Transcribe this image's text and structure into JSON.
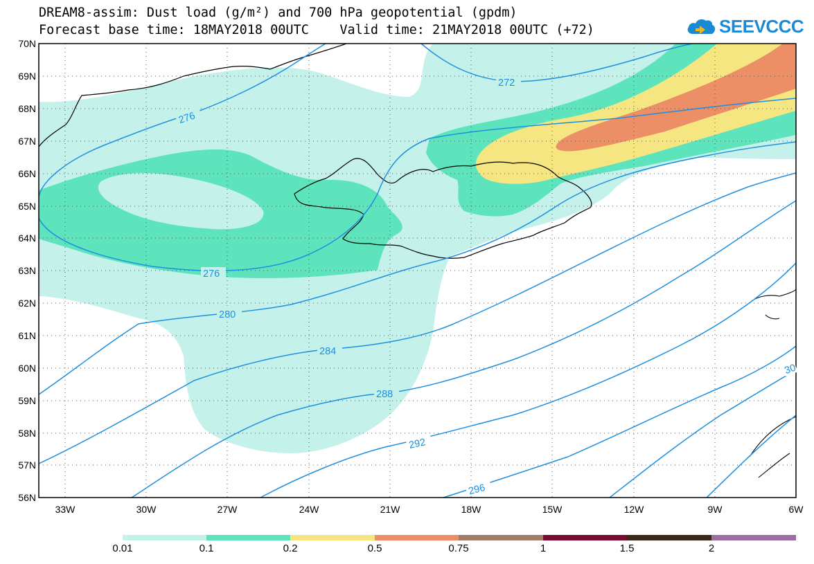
{
  "header": {
    "line1": "DREAM8-assim: Dust load (g/m²) and 700 hPa geopotential (gpdm)",
    "line2": "Forecast base time: 18MAY2018 00UTC    Valid time: 21MAY2018 00UTC (+72)",
    "logo_text": "SEEVCCC"
  },
  "map": {
    "lat_labels": [
      "70N",
      "69N",
      "68N",
      "67N",
      "66N",
      "65N",
      "64N",
      "63N",
      "62N",
      "61N",
      "60N",
      "59N",
      "58N",
      "57N",
      "56N"
    ],
    "lon_labels": [
      "33W",
      "30W",
      "27W",
      "24W",
      "21W",
      "18W",
      "15W",
      "12W",
      "9W",
      "6W"
    ],
    "contour_labels": [
      "272",
      "276",
      "276",
      "280",
      "284",
      "288",
      "292",
      "296",
      "30"
    ]
  },
  "colorbar": {
    "tick_labels": [
      "0.01",
      "0.1",
      "0.2",
      "0.5",
      "0.75",
      "1",
      "1.5",
      "2"
    ],
    "colors": [
      "#c4f2ea",
      "#5de4bd",
      "#f6e681",
      "#ec8e66",
      "#9e7b6a",
      "#7a0a2e",
      "#3b2716",
      "#9a6ea3"
    ]
  },
  "colors": {
    "contour": "#1e8fe0",
    "dust_001": "#c4f2ea",
    "dust_01": "#5de4bd",
    "dust_02": "#f6e681",
    "dust_05": "#ec8e66"
  }
}
